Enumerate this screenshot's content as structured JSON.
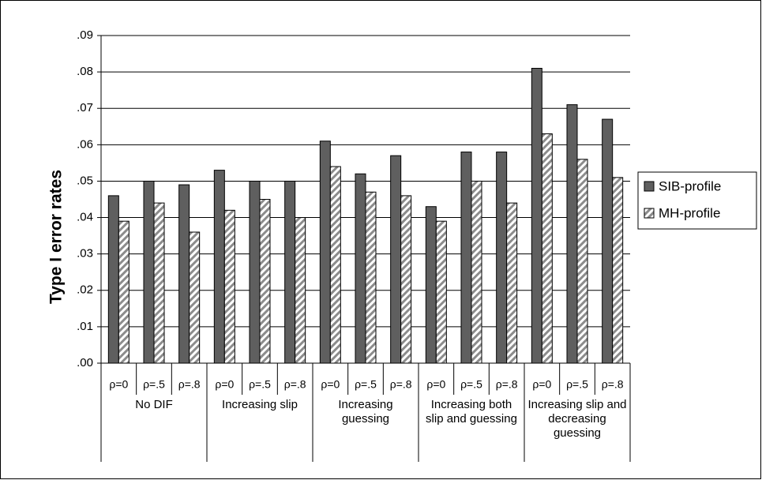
{
  "chart_data": {
    "type": "bar",
    "y_label": "Type I error rates",
    "groups": [
      {
        "label": "No DIF",
        "categories": [
          "ρ=0",
          "ρ=.5",
          "ρ=.8"
        ]
      },
      {
        "label": "Increasing slip",
        "categories": [
          "ρ=0",
          "ρ=.5",
          "ρ=.8"
        ]
      },
      {
        "label": "Increasing guessing",
        "categories": [
          "ρ=0",
          "ρ=.5",
          "ρ=.8"
        ]
      },
      {
        "label": "Increasing both slip and guessing",
        "categories": [
          "ρ=0",
          "ρ=.5",
          "ρ=.8"
        ]
      },
      {
        "label": "Increasing slip and decreasing guessing",
        "categories": [
          "ρ=0",
          "ρ=.5",
          "ρ=.8"
        ]
      }
    ],
    "series": [
      {
        "name": "SIB-profile",
        "color": "#5f5f5f",
        "hatch": false,
        "values": [
          0.046,
          0.05,
          0.049,
          0.053,
          0.05,
          0.05,
          0.061,
          0.052,
          0.057,
          0.043,
          0.058,
          0.058,
          0.081,
          0.071,
          0.067
        ]
      },
      {
        "name": "MH-profile",
        "color": "#8c8c8c",
        "hatch": true,
        "values": [
          0.039,
          0.044,
          0.036,
          0.042,
          0.045,
          0.04,
          0.054,
          0.047,
          0.046,
          0.039,
          0.05,
          0.044,
          0.063,
          0.056,
          0.051
        ]
      }
    ],
    "ylim": [
      0,
      0.09
    ],
    "yticks": [
      {
        "value": 0,
        "label": ".00"
      },
      {
        "value": 0.01,
        "label": ".01"
      },
      {
        "value": 0.02,
        "label": ".02"
      },
      {
        "value": 0.03,
        "label": ".03"
      },
      {
        "value": 0.04,
        "label": ".04"
      },
      {
        "value": 0.05,
        "label": ".05"
      },
      {
        "value": 0.06,
        "label": ".06"
      },
      {
        "value": 0.07,
        "label": ".07"
      },
      {
        "value": 0.08,
        "label": ".08"
      },
      {
        "value": 0.09,
        "label": ".09"
      }
    ],
    "grid": true,
    "legend": "right"
  }
}
